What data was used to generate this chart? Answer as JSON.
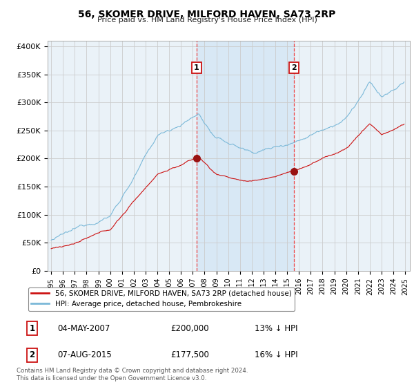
{
  "title": "56, SKOMER DRIVE, MILFORD HAVEN, SA73 2RP",
  "subtitle": "Price paid vs. HM Land Registry's House Price Index (HPI)",
  "ylabel_ticks": [
    "£0",
    "£50K",
    "£100K",
    "£150K",
    "£200K",
    "£250K",
    "£300K",
    "£350K",
    "£400K"
  ],
  "ytick_values": [
    0,
    50000,
    100000,
    150000,
    200000,
    250000,
    300000,
    350000,
    400000
  ],
  "ylim": [
    0,
    410000
  ],
  "sale1_t": 2007.33,
  "sale1_price": 200000,
  "sale2_t": 2015.58,
  "sale2_price": 177500,
  "legend_entries": [
    "56, SKOMER DRIVE, MILFORD HAVEN, SA73 2RP (detached house)",
    "HPI: Average price, detached house, Pembrokeshire"
  ],
  "table_rows": [
    {
      "num": "1",
      "date": "04-MAY-2007",
      "price": "£200,000",
      "hpi": "13% ↓ HPI"
    },
    {
      "num": "2",
      "date": "07-AUG-2015",
      "price": "£177,500",
      "hpi": "16% ↓ HPI"
    }
  ],
  "footnote1": "Contains HM Land Registry data © Crown copyright and database right 2024.",
  "footnote2": "This data is licensed under the Open Government Licence v3.0.",
  "hpi_color": "#7ab8d8",
  "price_color": "#cc1111",
  "vline_color": "#ee4444",
  "shade_color": "#d8e8f5",
  "grid_color": "#cccccc",
  "background_color": "#ffffff",
  "plot_bg_color": "#eaf2f8"
}
